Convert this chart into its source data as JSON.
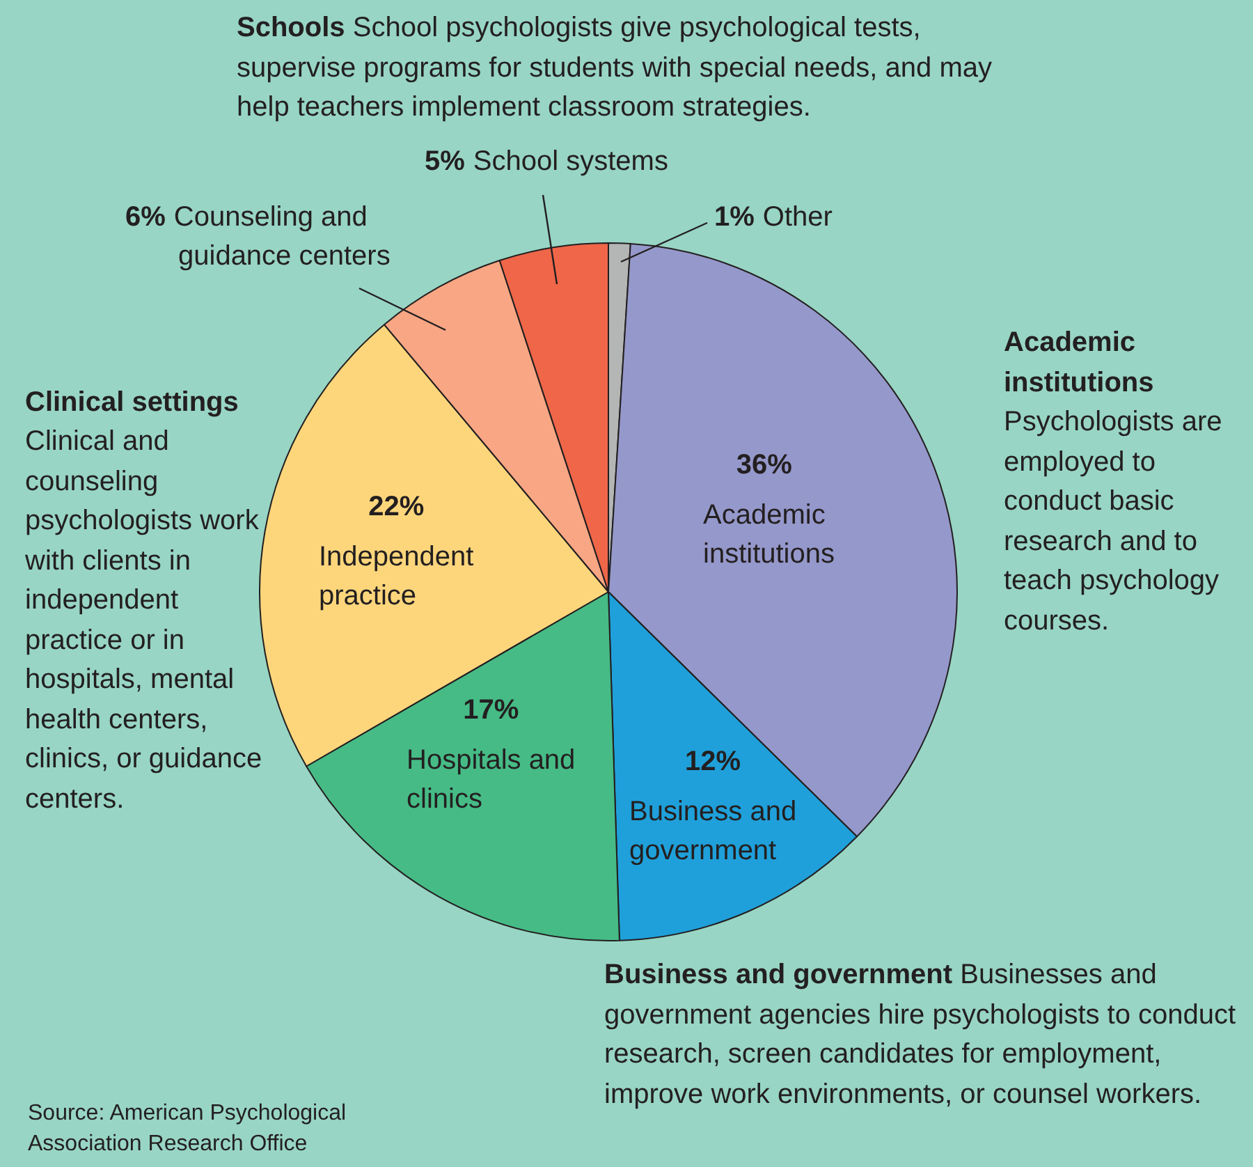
{
  "chart_data": {
    "type": "pie",
    "categories": [
      "Other",
      "Academic institutions",
      "Business and government",
      "Hospitals and clinics",
      "Independent practice",
      "Counseling and guidance centers",
      "School systems"
    ],
    "values": [
      1,
      36,
      12,
      17,
      22,
      6,
      5
    ],
    "colors": [
      "#b3b6b4",
      "#9598ca",
      "#1fa0da",
      "#46bb86",
      "#fdd67c",
      "#f8a684",
      "#ef6649"
    ],
    "value_labels": [
      "1%",
      "36%",
      "12%",
      "17%",
      "22%",
      "6%",
      "5%"
    ],
    "annotations": [
      "Schools",
      "School psychologists give psychological tests, supervise programs for students with special needs, and may help teachers implement classroom strategies.",
      "Clinical settings",
      "Clinical and counseling psychologists work with clients in independent practice or in hospitals, mental health centers, clinics, or guidance centers.",
      "Academic institutions",
      "Psychologists are employed to conduct basic research and to teach psychology courses.",
      "Business and government",
      "Businesses and government agencies hire psychologists to conduct research, screen candidates for employment, improve work environments, or counsel workers.",
      "Source:  American Psychological Association Research Office"
    ]
  }
}
